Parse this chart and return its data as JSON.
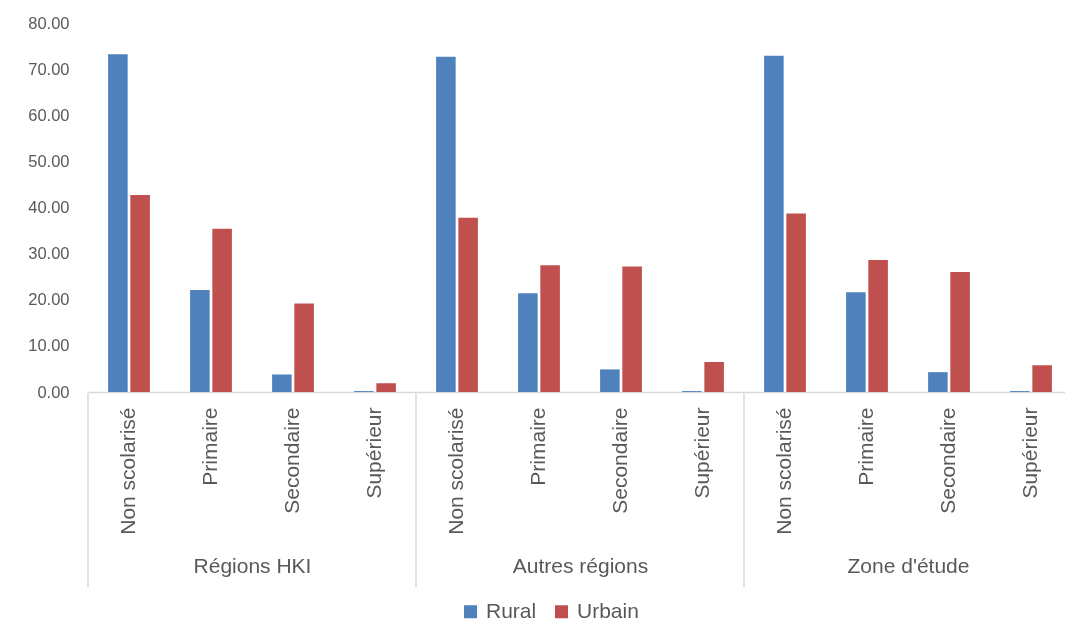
{
  "chart_data": [
    {
      "type": "bar",
      "xlabel": "Régions HKI",
      "categories": [
        "Non scolarisé",
        "Primaire",
        "Secondaire",
        "Supérieur"
      ],
      "series": [
        {
          "name": "Rural",
          "color": "#4f81bd",
          "values": [
            73.2,
            22.1,
            3.8,
            0.2
          ]
        },
        {
          "name": "Urbain",
          "color": "#c0504d",
          "values": [
            42.7,
            35.4,
            19.2,
            1.9
          ]
        }
      ],
      "ylim": [
        0,
        80
      ],
      "yticks": [
        {
          "value": 0,
          "label": "0.00"
        },
        {
          "value": 10,
          "label": "10.00"
        },
        {
          "value": 20,
          "label": "20.00"
        },
        {
          "value": 30,
          "label": "30.00"
        },
        {
          "value": 40,
          "label": "40.00"
        },
        {
          "value": 50,
          "label": "50.00"
        },
        {
          "value": 60,
          "label": "60.00"
        },
        {
          "value": 70,
          "label": "70.00"
        },
        {
          "value": 80,
          "label": "80.00"
        }
      ],
      "legend": "bottom"
    },
    {
      "type": "bar",
      "xlabel": "Autres régions",
      "categories": [
        "Non scolarisé",
        "Primaire",
        "Secondaire",
        "Supérieur"
      ],
      "series": [
        {
          "name": "Rural",
          "color": "#4f81bd",
          "values": [
            72.7,
            21.4,
            4.9,
            0.2
          ]
        },
        {
          "name": "Urbain",
          "color": "#c0504d",
          "values": [
            37.8,
            27.5,
            27.2,
            6.5
          ]
        }
      ],
      "ylim": [
        0,
        80
      ],
      "tick_labels": "x",
      "legend": "bottom"
    },
    {
      "type": "bar",
      "xlabel": "Zone d'étude",
      "categories": [
        "Non scolarisé",
        "Primaire",
        "Secondaire",
        "Supérieur"
      ],
      "series": [
        {
          "name": "Rural",
          "color": "#4f81bd",
          "values": [
            72.9,
            21.6,
            4.3,
            0.2
          ]
        },
        {
          "name": "Urbain",
          "color": "#c0504d",
          "values": [
            38.7,
            28.6,
            26.0,
            5.8
          ]
        }
      ],
      "ylim": [
        0,
        80
      ],
      "tick_labels": "x",
      "legend": "bottom"
    }
  ]
}
